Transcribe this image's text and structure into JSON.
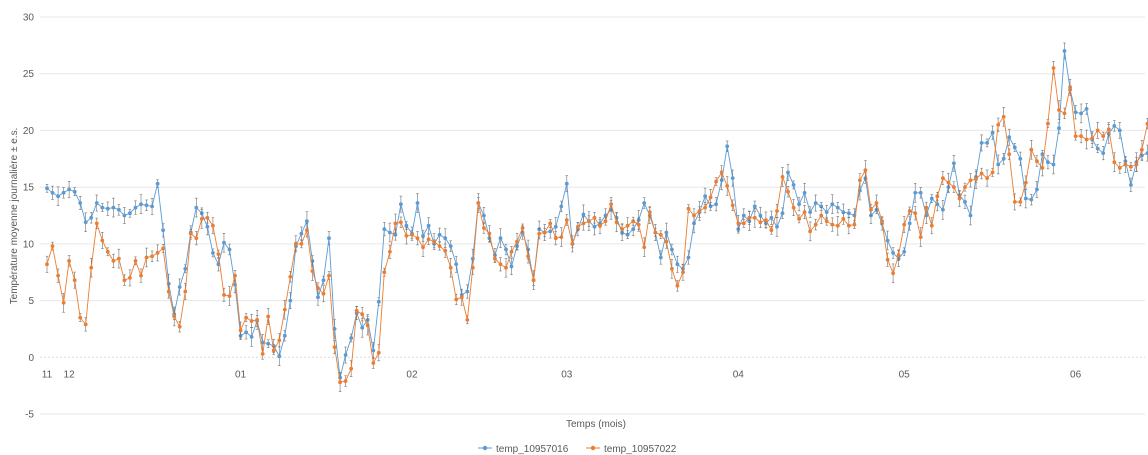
{
  "chart_data": {
    "type": "line",
    "xlabel": "Temps (mois)",
    "ylabel": "Température moyenne journalière ± e.s.",
    "ylim": [
      -5,
      30
    ],
    "yticks": [
      -5,
      0,
      5,
      10,
      15,
      20,
      25,
      30
    ],
    "grid": true,
    "legend_position": "bottom",
    "error_bars": true,
    "x_tick_labels": [
      {
        "label": "11",
        "day": 1
      },
      {
        "label": "12",
        "day": 5
      },
      {
        "label": "01",
        "day": 36
      },
      {
        "label": "02",
        "day": 67
      },
      {
        "label": "03",
        "day": 95
      },
      {
        "label": "04",
        "day": 126
      },
      {
        "label": "05",
        "day": 156
      },
      {
        "label": "06",
        "day": 187
      }
    ],
    "x_start_day": 1,
    "series": [
      {
        "name": "temp_10957016",
        "color": "#5b9bd5",
        "values": [
          14.9,
          14.5,
          14.2,
          14.5,
          14.8,
          14.6,
          13.6,
          11.9,
          12.3,
          13.6,
          13.2,
          13.1,
          13.2,
          13.0,
          12.5,
          12.7,
          13.2,
          13.5,
          13.4,
          13.3,
          15.3,
          11.2,
          6.5,
          3.8,
          6.2,
          7.8,
          11.0,
          13.2,
          12.7,
          11.5,
          9.2,
          8.2,
          10.1,
          9.5,
          6.4,
          1.9,
          2.2,
          1.8,
          3.2,
          1.3,
          1.2,
          1.0,
          0.1,
          1.9,
          5.0,
          9.8,
          10.9,
          12.0,
          8.5,
          5.3,
          6.8,
          10.5,
          2.5,
          -1.8,
          0.2,
          1.7,
          3.9,
          2.6,
          3.3,
          0.6,
          4.9,
          11.3,
          11.0,
          10.8,
          13.5,
          11.6,
          10.9,
          13.6,
          10.7,
          11.6,
          10.0,
          10.8,
          10.5,
          9.8,
          8.2,
          5.5,
          5.8,
          8.7,
          13.6,
          12.5,
          10.5,
          9.0,
          10.5,
          9.5,
          8.0,
          9.8,
          11.0,
          9.5,
          6.8,
          11.3,
          11.0,
          11.1,
          11.5,
          13.3,
          15.3,
          10.0,
          11.3,
          12.6,
          12.0,
          11.5,
          11.8,
          12.5,
          13.0,
          12.3,
          11.0,
          10.8,
          11.3,
          12.1,
          13.6,
          12.5,
          11.0,
          8.8,
          11.0,
          9.5,
          8.2,
          7.8,
          8.8,
          11.8,
          12.8,
          14.2,
          13.3,
          13.5,
          15.6,
          18.6,
          15.8,
          11.3,
          12.5,
          12.0,
          13.3,
          12.5,
          11.8,
          12.3,
          11.5,
          12.7,
          16.3,
          15.2,
          13.5,
          14.5,
          12.8,
          13.6,
          13.3,
          12.8,
          13.5,
          13.2,
          12.8,
          12.7,
          12.5,
          14.7,
          15.8,
          12.5,
          13.0,
          11.8,
          10.3,
          9.2,
          8.7,
          9.3,
          11.8,
          14.5,
          14.5,
          12.5,
          14.0,
          13.5,
          13.0,
          15.0,
          17.1,
          14.3,
          13.7,
          12.5,
          15.9,
          18.9,
          18.9,
          19.8,
          17.0,
          17.5,
          19.4,
          18.5,
          17.5,
          14.0,
          13.9,
          14.8,
          17.9,
          17.2,
          17.0,
          20.2,
          27.0,
          23.6,
          21.6,
          21.5,
          21.9,
          19.2,
          18.4,
          18.0,
          19.7,
          20.4,
          20.0,
          17.3,
          15.2,
          17.2,
          17.8,
          18.0,
          18.3,
          21.9,
          19.3,
          21.4,
          20.6,
          20.0
        ]
      },
      {
        "name": "temp_10957022",
        "color": "#ed7d31",
        "values": [
          8.2,
          9.8,
          7.2,
          4.8,
          8.5,
          6.8,
          3.5,
          2.9,
          7.9,
          11.8,
          10.3,
          9.3,
          8.5,
          8.7,
          6.8,
          7.0,
          8.5,
          7.2,
          8.8,
          8.9,
          9.2,
          9.6,
          5.8,
          3.6,
          2.7,
          5.8,
          10.9,
          10.5,
          12.2,
          12.3,
          11.6,
          9.1,
          5.5,
          5.4,
          7.2,
          2.4,
          3.5,
          3.2,
          3.3,
          0.3,
          3.6,
          0.6,
          1.5,
          4.2,
          7.1,
          10.0,
          10.0,
          11.2,
          7.6,
          6.1,
          5.6,
          7.2,
          0.9,
          -2.2,
          -2.1,
          -1.0,
          4.1,
          3.8,
          2.8,
          -0.5,
          0.4,
          7.5,
          9.3,
          11.8,
          11.9,
          10.7,
          10.8,
          10.5,
          9.7,
          10.4,
          10.2,
          9.8,
          9.4,
          7.9,
          5.1,
          5.3,
          3.3,
          7.9,
          13.6,
          11.4,
          10.9,
          8.7,
          8.2,
          7.9,
          9.3,
          10.2,
          11.4,
          8.9,
          6.8,
          10.9,
          11.0,
          11.8,
          10.5,
          10.6,
          12.1,
          10.0,
          11.5,
          11.8,
          12.0,
          12.3,
          11.6,
          12.0,
          13.5,
          11.9,
          11.3,
          11.6,
          12.0,
          11.7,
          9.7,
          12.8,
          11.0,
          10.8,
          10.2,
          7.8,
          6.3,
          7.5,
          13.1,
          12.5,
          12.9,
          13.2,
          14.1,
          15.5,
          16.3,
          15.1,
          13.4,
          11.8,
          11.8,
          12.3,
          12.3,
          11.9,
          12.1,
          11.2,
          12.9,
          15.9,
          14.6,
          13.2,
          12.2,
          12.8,
          11.1,
          11.7,
          12.5,
          12.0,
          11.7,
          11.6,
          12.2,
          11.6,
          11.7,
          15.6,
          16.5,
          13.0,
          13.6,
          12.0,
          8.6,
          7.4,
          9.0,
          11.7,
          12.9,
          12.7,
          10.6,
          13.2,
          11.6,
          14.2,
          15.8,
          15.4,
          15.0,
          14.0,
          15.0,
          15.6,
          15.7,
          16.2,
          15.8,
          16.3,
          20.5,
          21.2,
          17.9,
          13.7,
          13.7,
          15.4,
          18.3,
          17.3,
          16.7,
          20.6,
          25.5,
          21.8,
          21.5,
          23.8,
          19.5,
          19.5,
          19.2,
          19.3,
          20.0,
          19.5,
          20.1,
          17.2,
          16.7,
          17.0,
          16.8,
          17.0,
          18.3,
          20.6,
          19.1,
          19.8,
          21.0,
          18.4
        ]
      }
    ]
  }
}
